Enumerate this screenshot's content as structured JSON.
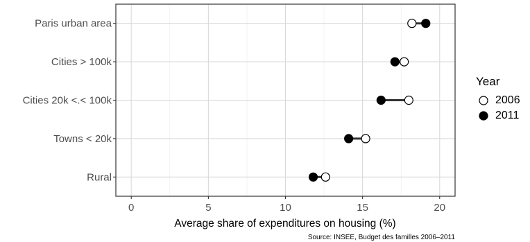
{
  "chart_data": {
    "type": "dumbbell",
    "title": "",
    "xlabel": "Average share of expenditures on housing (%)",
    "ylabel": "",
    "caption": "Source: INSEE, Budget des familles 2006–2011",
    "xlim": [
      -1,
      21
    ],
    "xticks": [
      0,
      5,
      10,
      15,
      20
    ],
    "grid": true,
    "legend_position": "right",
    "categories": [
      "Paris urban area",
      "Cities > 100k",
      "Cities 20k <.< 100k",
      "Towns < 20k",
      "Rural"
    ],
    "series": [
      {
        "name": "2006",
        "marker": "open-circle",
        "values": [
          18.2,
          17.7,
          18.0,
          15.2,
          12.6
        ]
      },
      {
        "name": "2011",
        "marker": "filled-circle",
        "values": [
          19.1,
          17.1,
          16.2,
          14.1,
          11.8
        ]
      }
    ],
    "legend": {
      "title": "Year",
      "items": [
        "2006",
        "2011"
      ]
    },
    "colors": {
      "segment": "#333333",
      "marker_fill_2006": "#ffffff",
      "marker_fill_2011": "#000000",
      "panel_border": "#333333",
      "grid": "#d9d9d9"
    }
  }
}
